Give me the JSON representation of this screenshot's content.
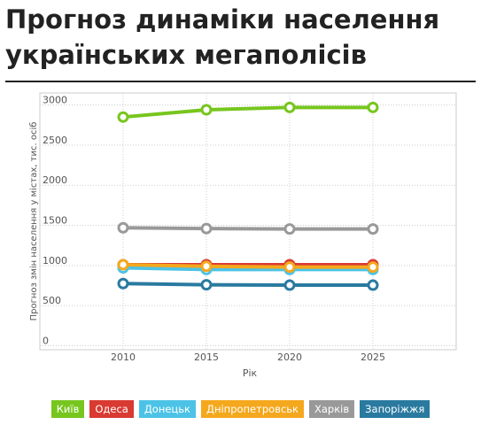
{
  "chart_data": {
    "type": "line",
    "title": "Прогноз динаміки населення українських мегаполісів",
    "x_label": "Рік",
    "y_label": "Прогноз змін населення у містах, тис. осіб",
    "x": [
      2010,
      2015,
      2020,
      2025
    ],
    "series": [
      {
        "name": "Київ",
        "color": "#77c61e",
        "values": [
          2850,
          2940,
          2970,
          2970
        ]
      },
      {
        "name": "Одеса",
        "color": "#d93a32",
        "values": [
          1010,
          1010,
          1010,
          1010
        ]
      },
      {
        "name": "Донецьк",
        "color": "#4cc3e6",
        "values": [
          970,
          950,
          950,
          950
        ]
      },
      {
        "name": "Дніпропетровськ",
        "color": "#f4a81d",
        "values": [
          1010,
          990,
          980,
          980
        ]
      },
      {
        "name": "Харків",
        "color": "#999999",
        "values": [
          1470,
          1460,
          1455,
          1455
        ]
      },
      {
        "name": "Запоріжжя",
        "color": "#2a7aa0",
        "values": [
          775,
          760,
          755,
          755
        ]
      }
    ],
    "xlim": [
      2005,
      2030
    ],
    "xticks": [
      2010,
      2015,
      2020,
      2025
    ],
    "ylim": [
      -50,
      3150
    ],
    "yticks": [
      0,
      500,
      1000,
      1500,
      2000,
      2500,
      3000
    ],
    "grid": true
  }
}
